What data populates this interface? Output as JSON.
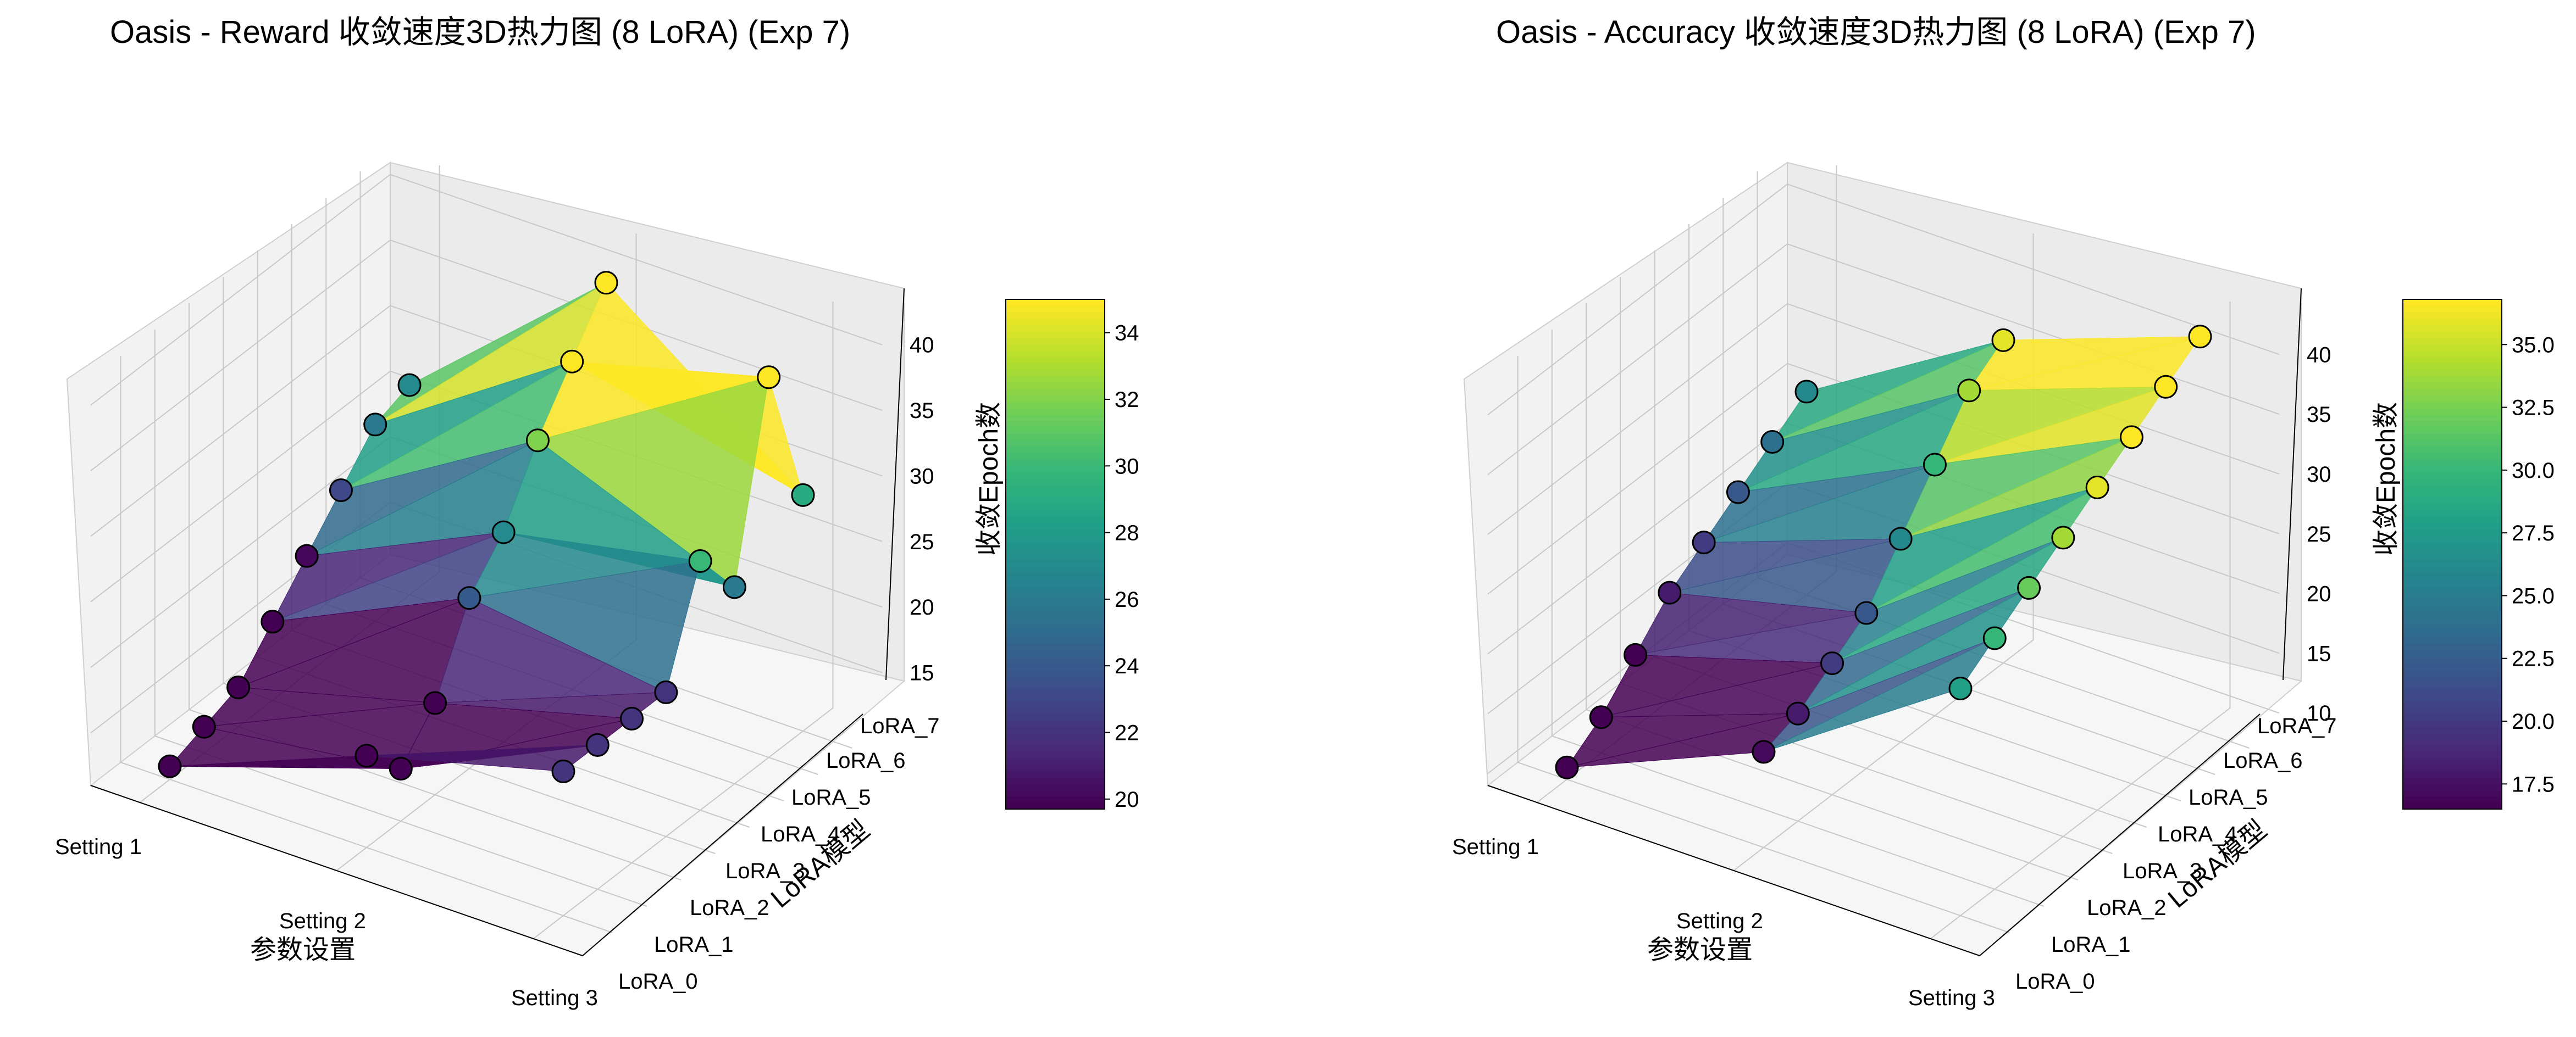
{
  "chart_data": [
    {
      "type": "surface3d",
      "title": "Oasis - Reward 收敛速度3D热力图 (8 LoRA) (Exp 7)",
      "xlabel": "参数设置",
      "ylabel": "LoRA模型",
      "zlabel": "收敛Epoch数",
      "x_categories": [
        "Setting 1",
        "Setting 2",
        "Setting 3"
      ],
      "y_categories": [
        "LoRA_0",
        "LoRA_1",
        "LoRA_2",
        "LoRA_3",
        "LoRA_4",
        "LoRA_5",
        "LoRA_6",
        "LoRA_7"
      ],
      "z_ticks": [
        15,
        20,
        25,
        30,
        35,
        40
      ],
      "zlim": [
        11,
        42
      ],
      "colormap": "viridis",
      "colorbar_label": "收敛Epoch数",
      "colorbar_range": [
        19.7,
        35
      ],
      "colorbar_ticks": [
        20,
        22,
        24,
        26,
        28,
        30,
        32,
        34
      ],
      "values": [
        [
          12,
          13,
          14,
          17,
          20,
          23,
          26,
          27
        ],
        [
          18,
          15,
          18,
          24,
          27,
          32,
          36,
          40
        ],
        [
          22,
          22,
          22,
          22,
          30,
          26,
          40,
          29
        ]
      ],
      "marker": "circle, black edge"
    },
    {
      "type": "surface3d",
      "title": "Oasis - Accuracy 收敛速度3D热力图 (8 LoRA) (Exp 7)",
      "xlabel": "参数设置",
      "ylabel": "LoRA模型",
      "zlabel": "收敛Epoch数",
      "x_categories": [
        "Setting 1",
        "Setting 2",
        "Setting 3"
      ],
      "y_categories": [
        "LoRA_0",
        "LoRA_1",
        "LoRA_2",
        "LoRA_3",
        "LoRA_4",
        "LoRA_5",
        "LoRA_6",
        "LoRA_7"
      ],
      "z_ticks": [
        10,
        15,
        20,
        25,
        30,
        35,
        40
      ],
      "zlim": [
        9,
        43
      ],
      "colormap": "viridis",
      "colorbar_label": "收敛Epoch数",
      "colorbar_range": [
        16.5,
        36.8
      ],
      "colorbar_ticks": [
        17.5,
        20.0,
        22.5,
        25.0,
        27.5,
        30.0,
        32.5,
        35.0
      ],
      "values": [
        [
          10,
          12,
          15,
          18,
          20,
          22,
          24,
          26
        ],
        [
          17,
          18,
          20,
          22,
          26,
          30,
          34,
          36
        ],
        [
          28,
          30,
          32,
          34,
          36,
          38,
          40,
          42
        ]
      ],
      "marker": "circle, black edge"
    }
  ]
}
